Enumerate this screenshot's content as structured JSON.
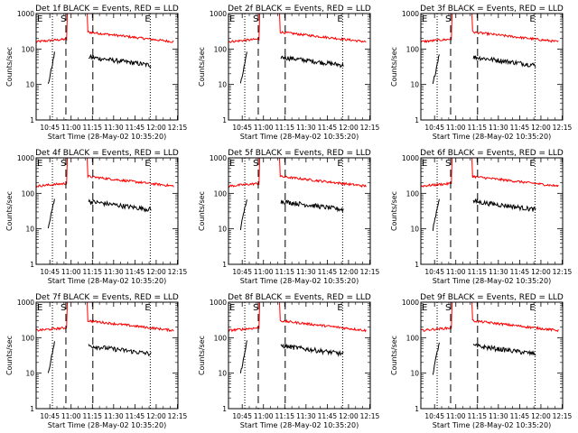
{
  "chart_data": [
    {
      "type": "line",
      "title": "Det 1f BLACK = Events, RED = LLD",
      "detector": "1f"
    },
    {
      "type": "line",
      "title": "Det 2f BLACK = Events, RED = LLD",
      "detector": "2f"
    },
    {
      "type": "line",
      "title": "Det 3f BLACK = Events, RED = LLD",
      "detector": "3f"
    },
    {
      "type": "line",
      "title": "Det 4f BLACK = Events, RED = LLD",
      "detector": "4f"
    },
    {
      "type": "line",
      "title": "Det 5f BLACK = Events, RED = LLD",
      "detector": "5f"
    },
    {
      "type": "line",
      "title": "Det 6f BLACK = Events, RED = LLD",
      "detector": "6f"
    },
    {
      "type": "line",
      "title": "Det 7f BLACK = Events, RED = LLD",
      "detector": "7f"
    },
    {
      "type": "line",
      "title": "Det 8f BLACK = Events, RED = LLD",
      "detector": "8f"
    },
    {
      "type": "line",
      "title": "Det 9f BLACK = Events, RED = LLD",
      "detector": "9f"
    }
  ],
  "shared": {
    "ylabel": "Counts/sec",
    "xlabel": "Start Time (28-May-02 10:35:20)",
    "yscale": "log",
    "ylim": [
      1,
      1000
    ],
    "yticks": [
      "1",
      "10",
      "100",
      "1000"
    ],
    "xticks": [
      "10:45",
      "11:00",
      "11:15",
      "11:30",
      "11:45",
      "12:00",
      "12:15"
    ],
    "xtick_minutes": [
      9.67,
      24.67,
      39.67,
      54.67,
      69.67,
      84.67,
      99.67
    ],
    "xlim_minutes": [
      0,
      100
    ],
    "flags": [
      "E",
      "S",
      "E"
    ],
    "colors": {
      "events": "#000000",
      "lld": "#ff0000"
    },
    "series": [
      {
        "name": "Events",
        "color": "#000000"
      },
      {
        "name": "LLD",
        "color": "#ff0000"
      }
    ],
    "lld_levels": {
      "pre_start": 160,
      "pre_end": 190,
      "spike": 1000,
      "post_start": 300,
      "post_end": 160
    },
    "events_levels": {
      "seg1_start": 10,
      "seg1_end": 75,
      "seg2_start": 60,
      "seg2_end": 35
    },
    "event_markers_minutes": {
      "e1": 11.5,
      "s": 21.0,
      "e2": 40.0,
      "e3": 80.5
    },
    "gap_minutes": [
      21.5,
      36.5
    ]
  }
}
